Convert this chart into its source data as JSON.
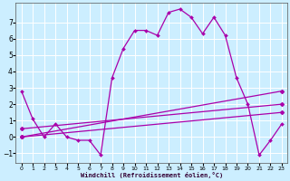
{
  "xlabel": "Windchill (Refroidissement éolien,°C)",
  "bg_color": "#cceeff",
  "grid_color": "#ffffff",
  "line_color": "#aa00aa",
  "xlim": [
    -0.5,
    23.5
  ],
  "ylim": [
    -1.6,
    8.2
  ],
  "yticks": [
    -1,
    0,
    1,
    2,
    3,
    4,
    5,
    6,
    7
  ],
  "xticks": [
    0,
    1,
    2,
    3,
    4,
    5,
    6,
    7,
    8,
    9,
    10,
    11,
    12,
    13,
    14,
    15,
    16,
    17,
    18,
    19,
    20,
    21,
    22,
    23
  ],
  "curve_x": [
    0,
    1,
    2,
    3,
    4,
    5,
    6,
    7,
    8,
    9,
    10,
    11,
    12,
    13,
    14,
    15,
    16,
    17,
    18,
    19,
    20,
    21,
    22,
    23
  ],
  "curve_y": [
    2.8,
    1.1,
    0.0,
    0.8,
    0.0,
    -0.2,
    -0.2,
    -1.1,
    3.6,
    5.4,
    6.5,
    6.5,
    6.2,
    7.6,
    7.8,
    7.3,
    6.3,
    7.3,
    6.2,
    3.6,
    2.0,
    -1.1,
    -0.2,
    0.8
  ],
  "line1_x": [
    0,
    23
  ],
  "line1_y": [
    0.0,
    2.8
  ],
  "line2_x": [
    0,
    23
  ],
  "line2_y": [
    0.5,
    2.0
  ],
  "line3_x": [
    0,
    23
  ],
  "line3_y": [
    0.0,
    1.5
  ]
}
